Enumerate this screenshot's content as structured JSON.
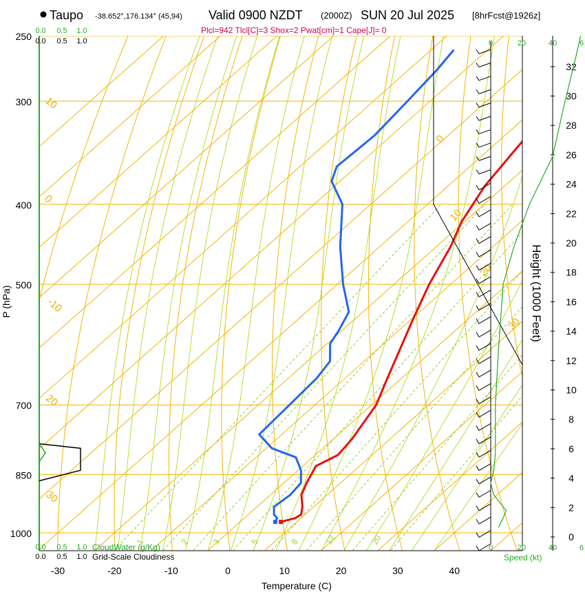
{
  "header": {
    "station": "Taupo",
    "coords": "-38.652°,176.134° (45,94)",
    "valid_main": "Valid 0900 NZDT",
    "valid_z": "(2000Z)",
    "valid_date": "SUN 20 Jul 2025",
    "forecast": "[8hrFcst@1926z]",
    "indices": "Plcl=942 Tlcl[C]=3 Shox=2 Pwat[cm]=1 Cape[J]= 0"
  },
  "colors": {
    "temperature": "#e81010",
    "dewpoint": "#2266ee",
    "isobar_isotherm": "#f2b400",
    "mixing": "#99cc33",
    "moist": "#aad400",
    "green_text": "#22aa22",
    "title_red": "#cc0055"
  },
  "chart_data": {
    "type": "skew-t",
    "title": "Valid 0900 NZDT (2000Z) SUN 20 Jul 2025",
    "xlabel": "Temperature (C)",
    "ylabel": "P (hPa)",
    "right_label": "Height (1000 Feet)",
    "xlim": [
      -35,
      47
    ],
    "ylim_hpa": [
      1000,
      250
    ],
    "x_ticks": [
      "-30",
      "-20",
      "-10",
      "0",
      "10",
      "20",
      "30",
      "40"
    ],
    "pressure_ticks": [
      "250",
      "300",
      "400",
      "500",
      "700",
      "850",
      "1000"
    ],
    "height_ticks": [
      "0",
      "2",
      "4",
      "6",
      "8",
      "10",
      "12",
      "14",
      "16",
      "18",
      "20",
      "22",
      "24",
      "26",
      "28",
      "30",
      "32"
    ],
    "dry_adiabat_labels": [
      "10",
      "0",
      "-10",
      "20",
      "30"
    ],
    "isotherm_labels": [
      "0",
      "10",
      "20",
      "30"
    ],
    "mixing_ratio_labels": [
      "1",
      "2",
      "3",
      "5",
      "8",
      "12",
      "20"
    ],
    "temperature_profile": [
      [
        970,
        7.2
      ],
      [
        960,
        9.0
      ],
      [
        950,
        9.3
      ],
      [
        930,
        8.0
      ],
      [
        900,
        5.5
      ],
      [
        870,
        4.0
      ],
      [
        830,
        2.3
      ],
      [
        805,
        4.0
      ],
      [
        770,
        3.3
      ],
      [
        700,
        0.8
      ],
      [
        650,
        -2.5
      ],
      [
        600,
        -6.0
      ],
      [
        550,
        -9.8
      ],
      [
        500,
        -13.8
      ],
      [
        450,
        -17.5
      ],
      [
        420,
        -20.5
      ],
      [
        380,
        -23.5
      ],
      [
        340,
        -25.5
      ],
      [
        300,
        -27.5
      ],
      [
        275,
        -28.0
      ],
      [
        255,
        -28.0
      ]
    ],
    "dewpoint_profile": [
      [
        970,
        6.2
      ],
      [
        960,
        5.8
      ],
      [
        950,
        4.5
      ],
      [
        930,
        3.0
      ],
      [
        900,
        3.5
      ],
      [
        870,
        3.0
      ],
      [
        840,
        0.5
      ],
      [
        810,
        -3.0
      ],
      [
        790,
        -9.0
      ],
      [
        760,
        -14.0
      ],
      [
        700,
        -14.5
      ],
      [
        650,
        -15.0
      ],
      [
        620,
        -16.0
      ],
      [
        590,
        -19.5
      ],
      [
        570,
        -20.5
      ],
      [
        540,
        -22.5
      ],
      [
        500,
        -29.0
      ],
      [
        450,
        -37.0
      ],
      [
        400,
        -45.0
      ],
      [
        375,
        -51.5
      ],
      [
        360,
        -53.5
      ],
      [
        330,
        -53.0
      ],
      [
        300,
        -54.0
      ],
      [
        275,
        -55.0
      ],
      [
        260,
        -56.0
      ]
    ],
    "cloud_water_label": "CloudWater (g/Kg)",
    "cloud_water_ticks": [
      "0.0",
      "0.5",
      "1.0"
    ],
    "cloudiness_label": "Grid-Scale Cloudiness",
    "cloudiness_ticks": [
      "0.0",
      "0.5",
      "1.0"
    ],
    "cloudiness_profile": [
      [
        780,
        0.0
      ],
      [
        790,
        1.0
      ],
      [
        840,
        1.0
      ],
      [
        865,
        0.0
      ]
    ],
    "cloud_water_profile": [
      [
        780,
        0.0
      ],
      [
        800,
        0.15
      ],
      [
        820,
        0.0
      ]
    ],
    "speed_label": "Speed (kt)",
    "speed_ticks": [
      "0",
      "20",
      "40",
      "6"
    ],
    "wind_speed_profile": [
      [
        985,
        5
      ],
      [
        960,
        8
      ],
      [
        940,
        10
      ],
      [
        900,
        2
      ],
      [
        870,
        0
      ],
      [
        840,
        2
      ],
      [
        800,
        3
      ],
      [
        700,
        3
      ],
      [
        600,
        5
      ],
      [
        500,
        8
      ],
      [
        450,
        15
      ],
      [
        400,
        25
      ],
      [
        350,
        40
      ],
      [
        300,
        48
      ],
      [
        265,
        55
      ],
      [
        250,
        58
      ]
    ],
    "wind_barb_count": 38
  }
}
